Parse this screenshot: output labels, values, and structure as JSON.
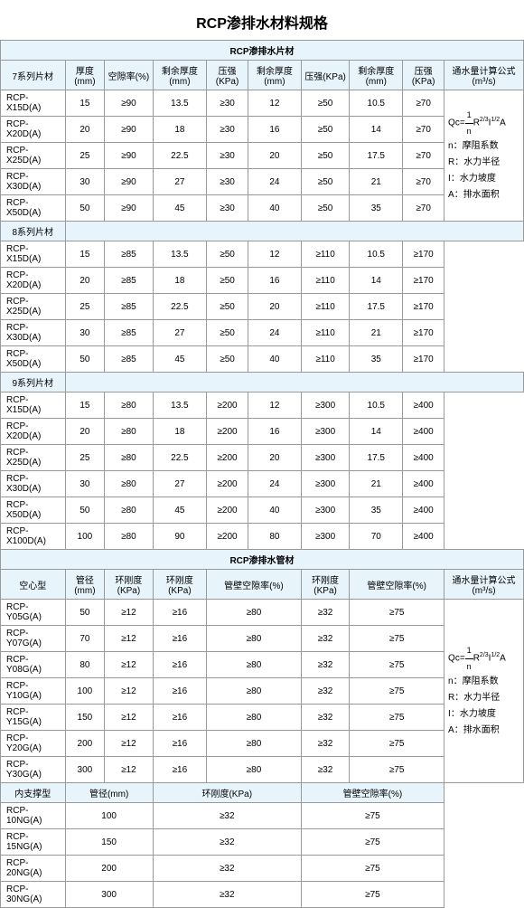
{
  "title": "RCP渗排水材料规格",
  "sheet_title": "RCP渗排水片材",
  "pipe_title": "RCP渗排水管材",
  "h": {
    "s7": "7系列片材",
    "s8": "8系列片材",
    "s9": "9系列片材",
    "thickness": "厚度(mm)",
    "void": "空隙率(%)",
    "rthick": "剩余厚度(mm)",
    "press": "压强(KPa)",
    "flow": "通水量计算公式(m³/s)",
    "hollow": "空心型",
    "dia": "管径(mm)",
    "stiff": "环刚度(KPa)",
    "wallvoid": "管壁空隙率(%)",
    "support": "内支撑型"
  },
  "s7": [
    {
      "n": "RCP-X15D(A)",
      "t": "15",
      "v": "≥90",
      "rt1": "13.5",
      "p1": "≥30",
      "rt2": "12",
      "p2": "≥50",
      "rt3": "10.5",
      "p3": "≥70"
    },
    {
      "n": "RCP-X20D(A)",
      "t": "20",
      "v": "≥90",
      "rt1": "18",
      "p1": "≥30",
      "rt2": "16",
      "p2": "≥50",
      "rt3": "14",
      "p3": "≥70"
    },
    {
      "n": "RCP-X25D(A)",
      "t": "25",
      "v": "≥90",
      "rt1": "22.5",
      "p1": "≥30",
      "rt2": "20",
      "p2": "≥50",
      "rt3": "17.5",
      "p3": "≥70"
    },
    {
      "n": "RCP-X30D(A)",
      "t": "30",
      "v": "≥90",
      "rt1": "27",
      "p1": "≥30",
      "rt2": "24",
      "p2": "≥50",
      "rt3": "21",
      "p3": "≥70"
    },
    {
      "n": "RCP-X50D(A)",
      "t": "50",
      "v": "≥90",
      "rt1": "45",
      "p1": "≥30",
      "rt2": "40",
      "p2": "≥50",
      "rt3": "35",
      "p3": "≥70"
    }
  ],
  "s8": [
    {
      "n": "RCP-X15D(A)",
      "t": "15",
      "v": "≥85",
      "rt1": "13.5",
      "p1": "≥50",
      "rt2": "12",
      "p2": "≥110",
      "rt3": "10.5",
      "p3": "≥170"
    },
    {
      "n": "RCP-X20D(A)",
      "t": "20",
      "v": "≥85",
      "rt1": "18",
      "p1": "≥50",
      "rt2": "16",
      "p2": "≥110",
      "rt3": "14",
      "p3": "≥170"
    },
    {
      "n": "RCP-X25D(A)",
      "t": "25",
      "v": "≥85",
      "rt1": "22.5",
      "p1": "≥50",
      "rt2": "20",
      "p2": "≥110",
      "rt3": "17.5",
      "p3": "≥170"
    },
    {
      "n": "RCP-X30D(A)",
      "t": "30",
      "v": "≥85",
      "rt1": "27",
      "p1": "≥50",
      "rt2": "24",
      "p2": "≥110",
      "rt3": "21",
      "p3": "≥170"
    },
    {
      "n": "RCP-X50D(A)",
      "t": "50",
      "v": "≥85",
      "rt1": "45",
      "p1": "≥50",
      "rt2": "40",
      "p2": "≥110",
      "rt3": "35",
      "p3": "≥170"
    }
  ],
  "s9": [
    {
      "n": "RCP-X15D(A)",
      "t": "15",
      "v": "≥80",
      "rt1": "13.5",
      "p1": "≥200",
      "rt2": "12",
      "p2": "≥300",
      "rt3": "10.5",
      "p3": "≥400"
    },
    {
      "n": "RCP-X20D(A)",
      "t": "20",
      "v": "≥80",
      "rt1": "18",
      "p1": "≥200",
      "rt2": "16",
      "p2": "≥300",
      "rt3": "14",
      "p3": "≥400"
    },
    {
      "n": "RCP-X25D(A)",
      "t": "25",
      "v": "≥80",
      "rt1": "22.5",
      "p1": "≥200",
      "rt2": "20",
      "p2": "≥300",
      "rt3": "17.5",
      "p3": "≥400"
    },
    {
      "n": "RCP-X30D(A)",
      "t": "30",
      "v": "≥80",
      "rt1": "27",
      "p1": "≥200",
      "rt2": "24",
      "p2": "≥300",
      "rt3": "21",
      "p3": "≥400"
    },
    {
      "n": "RCP-X50D(A)",
      "t": "50",
      "v": "≥80",
      "rt1": "45",
      "p1": "≥200",
      "rt2": "40",
      "p2": "≥300",
      "rt3": "35",
      "p3": "≥400"
    },
    {
      "n": "RCP-X100D(A)",
      "t": "100",
      "v": "≥80",
      "rt1": "90",
      "p1": "≥200",
      "rt2": "80",
      "p2": "≥300",
      "rt3": "70",
      "p3": "≥400"
    }
  ],
  "hollow": [
    {
      "n": "RCP-Y05G(A)",
      "d": "50",
      "s1": "≥12",
      "s2": "≥16",
      "v1": "≥80",
      "s3": "≥32",
      "v2": "≥75"
    },
    {
      "n": "RCP-Y07G(A)",
      "d": "70",
      "s1": "≥12",
      "s2": "≥16",
      "v1": "≥80",
      "s3": "≥32",
      "v2": "≥75"
    },
    {
      "n": "RCP-Y08G(A)",
      "d": "80",
      "s1": "≥12",
      "s2": "≥16",
      "v1": "≥80",
      "s3": "≥32",
      "v2": "≥75"
    },
    {
      "n": "RCP-Y10G(A)",
      "d": "100",
      "s1": "≥12",
      "s2": "≥16",
      "v1": "≥80",
      "s3": "≥32",
      "v2": "≥75"
    },
    {
      "n": "RCP-Y15G(A)",
      "d": "150",
      "s1": "≥12",
      "s2": "≥16",
      "v1": "≥80",
      "s3": "≥32",
      "v2": "≥75"
    },
    {
      "n": "RCP-Y20G(A)",
      "d": "200",
      "s1": "≥12",
      "s2": "≥16",
      "v1": "≥80",
      "s3": "≥32",
      "v2": "≥75"
    },
    {
      "n": "RCP-Y30G(A)",
      "d": "300",
      "s1": "≥12",
      "s2": "≥16",
      "v1": "≥80",
      "s3": "≥32",
      "v2": "≥75"
    }
  ],
  "support": [
    {
      "n": "RCP-10NG(A)",
      "d": "100",
      "s": "≥32",
      "v": "≥75"
    },
    {
      "n": "RCP-15NG(A)",
      "d": "150",
      "s": "≥32",
      "v": "≥75"
    },
    {
      "n": "RCP-20NG(A)",
      "d": "200",
      "s": "≥32",
      "v": "≥75"
    },
    {
      "n": "RCP-30NG(A)",
      "d": "300",
      "s": "≥32",
      "v": "≥75"
    }
  ],
  "f": {
    "qc": "Qc=",
    "r23": "R",
    "i12": "I",
    "a": "A",
    "n": "n：摩阻系数",
    "r": "R：水力半径",
    "i": "I：水力坡度",
    "area": "A：排水面积",
    "frac_n": "n",
    "frac_1": "1",
    "exp1": "2/3",
    "exp2": "1/2"
  }
}
